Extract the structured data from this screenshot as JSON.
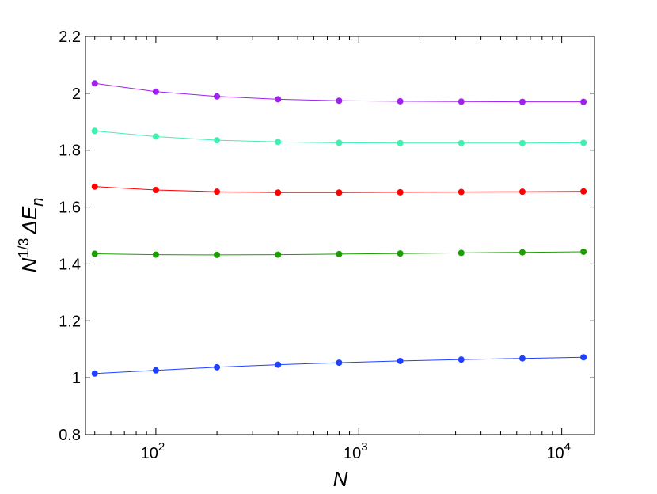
{
  "chart_data": {
    "type": "line",
    "x_scale": "log",
    "xlim": [
      45,
      14500
    ],
    "ylim": [
      0.8,
      2.2
    ],
    "xlabel": "N",
    "ylabel": {
      "base": "N",
      "exponent": "1/3",
      "symbol": "ΔE",
      "subscript": "n"
    },
    "y_ticks": [
      {
        "value": 0.8,
        "label": "0.8"
      },
      {
        "value": 1.0,
        "label": "1"
      },
      {
        "value": 1.2,
        "label": "1.2"
      },
      {
        "value": 1.4,
        "label": "1.4"
      },
      {
        "value": 1.6,
        "label": "1.6"
      },
      {
        "value": 1.8,
        "label": "1.8"
      },
      {
        "value": 2.0,
        "label": "2"
      },
      {
        "value": 2.2,
        "label": "2.2"
      }
    ],
    "x_ticks": [
      {
        "value": 100,
        "base": "10",
        "exponent": "2"
      },
      {
        "value": 1000,
        "base": "10",
        "exponent": "3"
      },
      {
        "value": 10000,
        "base": "10",
        "exponent": "4"
      }
    ],
    "x": [
      50,
      100,
      200,
      400,
      800,
      1600,
      3200,
      6400,
      12800
    ],
    "series": [
      {
        "color": "#a020f0",
        "values": [
          2.035,
          2.006,
          1.989,
          1.979,
          1.974,
          1.972,
          1.971,
          1.97,
          1.97
        ]
      },
      {
        "color": "#40f0b0",
        "values": [
          1.868,
          1.848,
          1.835,
          1.829,
          1.826,
          1.825,
          1.825,
          1.825,
          1.826
        ]
      },
      {
        "color": "#ff0000",
        "values": [
          1.672,
          1.66,
          1.654,
          1.651,
          1.651,
          1.652,
          1.653,
          1.654,
          1.655
        ]
      },
      {
        "color": "#1a9e00",
        "values": [
          1.436,
          1.433,
          1.432,
          1.433,
          1.435,
          1.437,
          1.439,
          1.441,
          1.443
        ]
      },
      {
        "color": "#2040ff",
        "values": [
          1.015,
          1.026,
          1.037,
          1.046,
          1.053,
          1.059,
          1.064,
          1.068,
          1.072
        ]
      }
    ],
    "grid": false
  }
}
